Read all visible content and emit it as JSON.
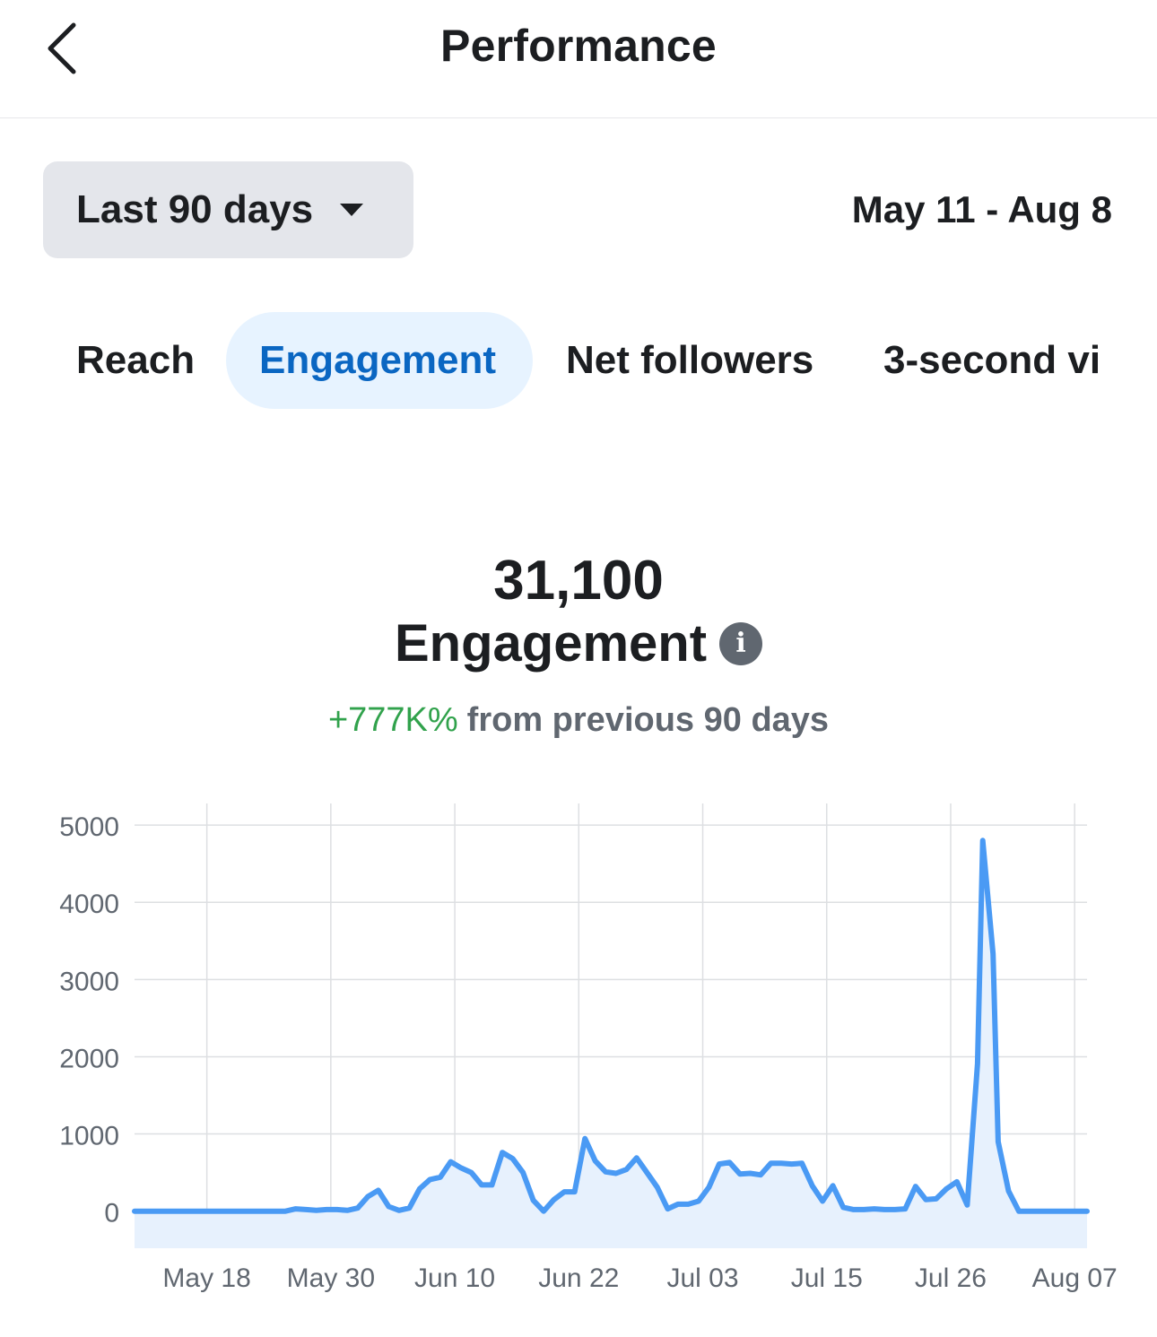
{
  "header": {
    "title": "Performance"
  },
  "filters": {
    "range_label": "Last 90 days",
    "date_range": "May 11 - Aug 8"
  },
  "tabs": [
    {
      "label": "Reach",
      "active": false
    },
    {
      "label": "Engagement",
      "active": true
    },
    {
      "label": "Net followers",
      "active": false
    },
    {
      "label": "3-second vi",
      "active": false
    }
  ],
  "summary": {
    "value": "31,100",
    "metric": "Engagement",
    "change_pct": "+777K%",
    "change_text": "from previous 90 days"
  },
  "colors": {
    "accent": "#0a66c2",
    "line": "#4a9af4",
    "fill": "#e7f1fd",
    "positive": "#31a24c"
  },
  "chart_data": {
    "type": "area",
    "y_ticks": [
      0,
      1000,
      2000,
      3000,
      4000,
      5000
    ],
    "ylim": [
      -480,
      5280
    ],
    "x_ticks": [
      {
        "label": "May 18",
        "day": 7
      },
      {
        "label": "May 30",
        "day": 19
      },
      {
        "label": "Jun 10",
        "day": 31
      },
      {
        "label": "Jun 22",
        "day": 43
      },
      {
        "label": "Jul 03",
        "day": 55
      },
      {
        "label": "Jul 15",
        "day": 67
      },
      {
        "label": "Jul 26",
        "day": 79
      },
      {
        "label": "Aug 07",
        "day": 91
      }
    ],
    "xlim": [
      0,
      92.2
    ],
    "grid": true,
    "series": [
      {
        "values": [
          [
            0,
            0
          ],
          [
            7,
            0
          ],
          [
            14.6,
            0
          ],
          [
            15.6,
            30
          ],
          [
            16.6,
            20
          ],
          [
            17.6,
            10
          ],
          [
            18.6,
            20
          ],
          [
            19.6,
            20
          ],
          [
            20.6,
            10
          ],
          [
            21.6,
            40
          ],
          [
            22.6,
            190
          ],
          [
            23.6,
            270
          ],
          [
            24.6,
            60
          ],
          [
            25.6,
            10
          ],
          [
            26.6,
            40
          ],
          [
            27.6,
            290
          ],
          [
            28.6,
            410
          ],
          [
            29.6,
            440
          ],
          [
            30.6,
            640
          ],
          [
            31.6,
            560
          ],
          [
            32.6,
            500
          ],
          [
            33.6,
            340
          ],
          [
            34.6,
            340
          ],
          [
            35.6,
            760
          ],
          [
            36.6,
            680
          ],
          [
            37.6,
            500
          ],
          [
            38.6,
            140
          ],
          [
            39.6,
            0
          ],
          [
            40.6,
            150
          ],
          [
            41.6,
            250
          ],
          [
            42.6,
            250
          ],
          [
            43.6,
            940
          ],
          [
            44.6,
            650
          ],
          [
            45.6,
            510
          ],
          [
            46.6,
            490
          ],
          [
            47.6,
            540
          ],
          [
            48.6,
            690
          ],
          [
            49.6,
            500
          ],
          [
            50.6,
            310
          ],
          [
            51.6,
            30
          ],
          [
            52.6,
            90
          ],
          [
            53.6,
            90
          ],
          [
            54.6,
            130
          ],
          [
            55.6,
            310
          ],
          [
            56.6,
            610
          ],
          [
            57.6,
            630
          ],
          [
            58.6,
            480
          ],
          [
            59.6,
            490
          ],
          [
            60.6,
            470
          ],
          [
            61.6,
            620
          ],
          [
            62.6,
            620
          ],
          [
            63.6,
            610
          ],
          [
            64.6,
            620
          ],
          [
            65.6,
            330
          ],
          [
            66.6,
            130
          ],
          [
            67.6,
            330
          ],
          [
            68.6,
            50
          ],
          [
            69.6,
            20
          ],
          [
            70.6,
            20
          ],
          [
            71.6,
            30
          ],
          [
            72.6,
            20
          ],
          [
            73.6,
            20
          ],
          [
            74.6,
            30
          ],
          [
            75.6,
            320
          ],
          [
            76.6,
            150
          ],
          [
            77.6,
            160
          ],
          [
            78.6,
            290
          ],
          [
            79.6,
            380
          ],
          [
            80.6,
            80
          ],
          [
            81.6,
            1910
          ],
          [
            82.1,
            4800
          ],
          [
            83.1,
            3330
          ],
          [
            83.6,
            900
          ],
          [
            84.6,
            260
          ],
          [
            85.6,
            0
          ],
          [
            88.6,
            0
          ],
          [
            92.2,
            0
          ]
        ]
      }
    ]
  }
}
